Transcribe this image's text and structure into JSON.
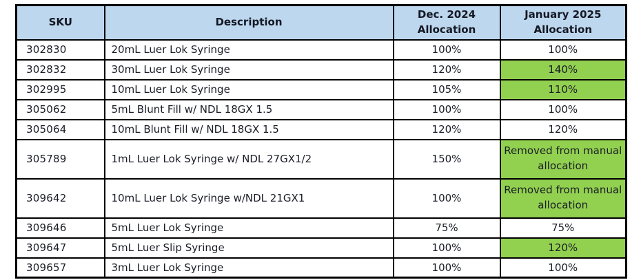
{
  "table": {
    "header": {
      "sku": "SKU",
      "description": "Description",
      "dec_line1": "Dec. 2024",
      "dec_line2": "Allocation",
      "jan_line1": "January 2025",
      "jan_line2": "Allocation"
    },
    "rows": [
      {
        "sku": "302830",
        "description": "20mL Luer Lok Syringe",
        "dec": "100%",
        "jan": "100%",
        "jan_highlight": false,
        "tall": false
      },
      {
        "sku": "302832",
        "description": "30mL Luer Lok Syringe",
        "dec": "120%",
        "jan": "140%",
        "jan_highlight": true,
        "tall": false
      },
      {
        "sku": "302995",
        "description": "10mL Luer Lok Syringe",
        "dec": "105%",
        "jan": "110%",
        "jan_highlight": true,
        "tall": false
      },
      {
        "sku": "305062",
        "description": "5mL Blunt Fill w/ NDL 18GX 1.5",
        "dec": "100%",
        "jan": "100%",
        "jan_highlight": false,
        "tall": false
      },
      {
        "sku": "305064",
        "description": "10mL Blunt Fill w/ NDL 18GX 1.5",
        "dec": "120%",
        "jan": "120%",
        "jan_highlight": false,
        "tall": false
      },
      {
        "sku": "305789",
        "description": "1mL Luer Lok Syringe w/ NDL 27GX1/2",
        "dec": "150%",
        "jan": "Removed from manual allocation",
        "jan_highlight": true,
        "tall": true
      },
      {
        "sku": "309642",
        "description": "10mL Luer Lok Syringe w/NDL 21GX1",
        "dec": "100%",
        "jan": "Removed from manual allocation",
        "jan_highlight": true,
        "tall": true
      },
      {
        "sku": "309646",
        "description": "5mL Luer Lok Syringe",
        "dec": "75%",
        "jan": "75%",
        "jan_highlight": false,
        "tall": false
      },
      {
        "sku": "309647",
        "description": "5mL Luer Slip Syringe",
        "dec": "100%",
        "jan": "120%",
        "jan_highlight": true,
        "tall": false
      },
      {
        "sku": "309657",
        "description": "3mL Luer Lok Syringe",
        "dec": "100%",
        "jan": "100%",
        "jan_highlight": false,
        "tall": false
      }
    ],
    "colors": {
      "header_bg": "#BDD7EE",
      "highlight_green": "#92D050",
      "border": "#000000"
    }
  }
}
